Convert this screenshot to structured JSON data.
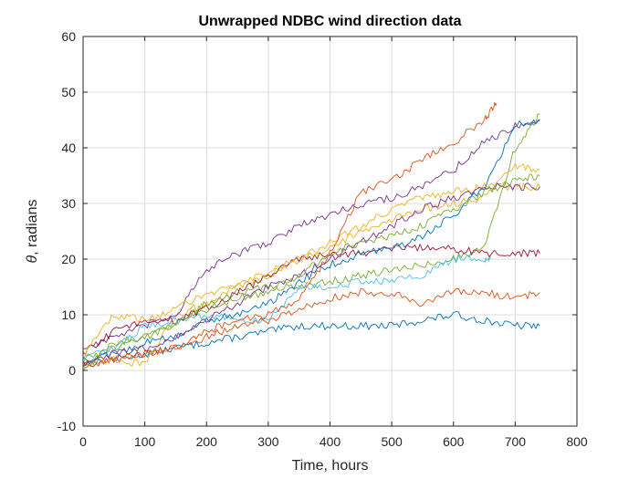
{
  "chart_data": {
    "type": "line",
    "title": "Unwrapped NDBC wind direction data",
    "xlabel": "Time, hours",
    "ylabel_symbol": "θ",
    "ylabel_text": ", radians",
    "xlim": [
      0,
      800
    ],
    "ylim": [
      -10,
      60
    ],
    "xticks": [
      0,
      100,
      200,
      300,
      400,
      500,
      600,
      700,
      800
    ],
    "yticks": [
      -10,
      0,
      10,
      20,
      30,
      40,
      50,
      60
    ],
    "grid": true,
    "series": [
      {
        "color": "#0072BD",
        "x": [
          0,
          50,
          100,
          150,
          200,
          250,
          300,
          350,
          400,
          450,
          500,
          550,
          600,
          650,
          700,
          740
        ],
        "y": [
          1,
          2,
          3,
          4,
          5,
          6,
          7,
          8,
          8,
          8,
          8,
          9,
          10,
          9,
          8,
          8
        ]
      },
      {
        "color": "#D95319",
        "x": [
          0,
          50,
          100,
          150,
          200,
          250,
          300,
          350,
          400,
          450,
          500,
          550,
          600,
          650,
          700,
          740
        ],
        "y": [
          1,
          2,
          3,
          4,
          6,
          8,
          9,
          11,
          13,
          14,
          14,
          12,
          14,
          14,
          13,
          14
        ]
      },
      {
        "color": "#EDB120",
        "x": [
          0,
          50,
          100,
          150,
          200,
          250,
          300,
          350,
          400,
          450,
          500,
          550,
          600,
          650,
          700,
          740
        ],
        "y": [
          1,
          2,
          1,
          10,
          12,
          15,
          17,
          20,
          23,
          26,
          29,
          31,
          32,
          33,
          33,
          33
        ]
      },
      {
        "color": "#7E2F8E",
        "x": [
          0,
          50,
          100,
          150,
          200,
          250,
          300,
          350,
          400,
          450,
          500,
          550,
          600,
          650,
          700,
          740
        ],
        "y": [
          4,
          6,
          8,
          10,
          18,
          21,
          23,
          26,
          28,
          30,
          31,
          33,
          36,
          41,
          44,
          45
        ]
      },
      {
        "color": "#77AC30",
        "x": [
          0,
          50,
          100,
          150,
          200,
          250,
          300,
          350,
          400,
          450,
          500,
          550,
          600,
          650,
          700,
          740
        ],
        "y": [
          0,
          5,
          6,
          8,
          12,
          14,
          15,
          15,
          16,
          17,
          18,
          19,
          20,
          22,
          40,
          46
        ]
      },
      {
        "color": "#4DBEEE",
        "x": [
          0,
          50,
          100,
          150,
          200,
          250,
          300,
          350,
          400,
          450,
          500,
          550,
          600,
          650,
          660
        ],
        "y": [
          2,
          4,
          8,
          9,
          10,
          9,
          9,
          15,
          15,
          16,
          16,
          17,
          20,
          20,
          20
        ]
      },
      {
        "color": "#A2142F",
        "x": [
          0,
          50,
          100,
          150,
          200,
          250,
          300,
          350,
          400,
          450,
          500,
          550,
          600,
          650,
          700,
          740
        ],
        "y": [
          3,
          7,
          9,
          9,
          11,
          14,
          17,
          20,
          21,
          21,
          22,
          22,
          22,
          21,
          21,
          21
        ]
      },
      {
        "color": "#0072BD",
        "x": [
          0,
          50,
          100,
          150,
          200,
          250,
          300,
          350,
          400,
          450,
          500,
          550,
          600,
          650,
          700,
          740
        ],
        "y": [
          2,
          3,
          5,
          6,
          9,
          10,
          12,
          16,
          19,
          21,
          22,
          24,
          28,
          33,
          44,
          45
        ]
      },
      {
        "color": "#D95319",
        "x": [
          0,
          50,
          100,
          150,
          200,
          250,
          300,
          350,
          400,
          450,
          500,
          550,
          600,
          650,
          670
        ],
        "y": [
          1,
          2,
          3,
          4,
          7,
          9,
          10,
          13,
          21,
          32,
          34,
          38,
          41,
          45,
          48
        ]
      },
      {
        "color": "#EDB120",
        "x": [
          0,
          50,
          100,
          150,
          200,
          250,
          300,
          350,
          400,
          450,
          500,
          550,
          600,
          650,
          700,
          740
        ],
        "y": [
          3,
          10,
          9,
          11,
          14,
          15,
          18,
          20,
          22,
          25,
          27,
          29,
          30,
          31,
          37,
          36
        ]
      },
      {
        "color": "#7E2F8E",
        "x": [
          0,
          50,
          100,
          150,
          200,
          250,
          300,
          350,
          400,
          450,
          500,
          550,
          600,
          650,
          700,
          740
        ],
        "y": [
          1,
          3,
          4,
          6,
          9,
          12,
          15,
          17,
          20,
          23,
          26,
          29,
          31,
          33,
          33,
          33
        ]
      },
      {
        "color": "#77AC30",
        "x": [
          0,
          50,
          100,
          150,
          200,
          250,
          300,
          350,
          400,
          450,
          500,
          550,
          600,
          650,
          700,
          740
        ],
        "y": [
          2,
          4,
          6,
          9,
          11,
          13,
          14,
          17,
          21,
          23,
          24,
          26,
          29,
          32,
          34,
          35
        ]
      }
    ]
  }
}
